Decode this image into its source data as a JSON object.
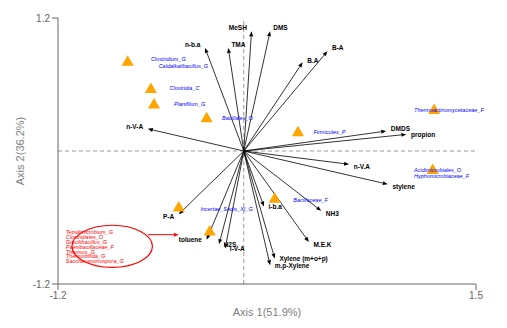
{
  "chart_data": {
    "type": "biplot",
    "xlabel": "Axis 1(51.9%)",
    "ylabel": "Axis 2(36.2%)",
    "xlim": [
      -1.2,
      1.5
    ],
    "ylim": [
      -1.2,
      1.2
    ],
    "xticks": [
      -1.2,
      1.5
    ],
    "yticks": [
      -1.2,
      1.2
    ],
    "grid": false,
    "legend": false,
    "reference_lines": {
      "x": [
        0
      ],
      "y": [
        0
      ],
      "color": "gray",
      "line_style": "dashed"
    },
    "env_vectors": {
      "color": "black",
      "items": [
        {
          "name": "MeSH",
          "x": 0.05,
          "y": 1.08,
          "label_x": 0.02,
          "label_y": 1.11
        },
        {
          "name": "DMS",
          "x": 0.17,
          "y": 1.08,
          "label_x": 0.19,
          "label_y": 1.11
        },
        {
          "name": "B-A",
          "x": 0.54,
          "y": 0.9,
          "label_x": 0.57,
          "label_y": 0.93
        },
        {
          "name": "B.A",
          "x": 0.38,
          "y": 0.8,
          "label_x": 0.41,
          "label_y": 0.82
        },
        {
          "name": "n-b.a",
          "x": -0.25,
          "y": 0.93,
          "label_x": -0.28,
          "label_y": 0.96
        },
        {
          "name": "TMA",
          "x": -0.1,
          "y": 0.93,
          "label_x": -0.08,
          "label_y": 0.96
        },
        {
          "name": "n-V-A",
          "x": -0.62,
          "y": 0.2,
          "label_x": -0.65,
          "label_y": 0.22
        },
        {
          "name": "DMDS",
          "x": 0.92,
          "y": 0.18,
          "label_x": 0.95,
          "label_y": 0.2
        },
        {
          "name": "propion",
          "x": 1.05,
          "y": 0.15,
          "label_x": 1.08,
          "label_y": 0.15
        },
        {
          "name": "n-V.A",
          "x": 0.68,
          "y": -0.12,
          "label_x": 0.71,
          "label_y": -0.14
        },
        {
          "name": "stylene",
          "x": 0.93,
          "y": -0.3,
          "label_x": 0.96,
          "label_y": -0.32
        },
        {
          "name": "i-b.a",
          "x": 0.13,
          "y": -0.5,
          "label_x": 0.16,
          "label_y": -0.5
        },
        {
          "name": "NH3",
          "x": 0.5,
          "y": -0.54,
          "label_x": 0.53,
          "label_y": -0.56
        },
        {
          "name": "P-A",
          "x": -0.42,
          "y": -0.57,
          "label_x": -0.45,
          "label_y": -0.59
        },
        {
          "name": "M.E.K",
          "x": 0.42,
          "y": -0.82,
          "label_x": 0.45,
          "label_y": -0.84
        },
        {
          "name": "toluene",
          "x": -0.24,
          "y": -0.8,
          "label_x": -0.27,
          "label_y": -0.8
        },
        {
          "name": "H2S",
          "x": -0.16,
          "y": -0.84,
          "label_x": -0.13,
          "label_y": -0.84
        },
        {
          "name": "i-V-A",
          "x": -0.12,
          "y": -0.88,
          "label_x": -0.09,
          "label_y": -0.88
        },
        {
          "name": "Xylene (m+o+p)",
          "x": 0.2,
          "y": -0.97,
          "label_x": 0.23,
          "label_y": -0.97
        },
        {
          "name": "m.p-Xylene",
          "x": 0.17,
          "y": -1.03,
          "label_x": 0.2,
          "label_y": -1.03
        }
      ]
    },
    "species": [
      {
        "name": "Clostridium_G",
        "x": -0.6,
        "y": 0.83,
        "color": "blue"
      },
      {
        "name": "Caldalkalibacillus_G",
        "x": -0.55,
        "y": 0.77,
        "color": "blue"
      },
      {
        "name": "Clostridia_C",
        "x": -0.48,
        "y": 0.57,
        "color": "blue"
      },
      {
        "name": "Planifilum_G",
        "x": -0.45,
        "y": 0.42,
        "color": "blue"
      },
      {
        "name": "Bacillales_O",
        "x": -0.14,
        "y": 0.3,
        "color": "blue"
      },
      {
        "name": "Firmicutes_P",
        "x": 0.45,
        "y": 0.17,
        "color": "blue"
      },
      {
        "name": "Thermoactinomycetaceae_F",
        "x": 1.1,
        "y": 0.37,
        "color": "blue"
      },
      {
        "name": "Acidimicrobiales_O",
        "x": 1.1,
        "y": -0.17,
        "color": "blue"
      },
      {
        "name": "Hyphomicrobiaceae_F",
        "x": 1.1,
        "y": -0.23,
        "color": "blue"
      },
      {
        "name": "Bacillaceae_F",
        "x": 0.32,
        "y": -0.44,
        "color": "blue"
      },
      {
        "name": "Incertae_Sedis_XI_G",
        "x": -0.28,
        "y": -0.52,
        "color": "blue"
      },
      {
        "name": "Tepidimicrobium_G",
        "x": -1.15,
        "y": -0.73,
        "color": "red"
      },
      {
        "name": "Clostridiales_O",
        "x": -1.15,
        "y": -0.78,
        "color": "red"
      },
      {
        "name": "Gracilibacillus_G",
        "x": -1.15,
        "y": -0.82,
        "color": "red"
      },
      {
        "name": "Paenibacillaceae_F",
        "x": -1.15,
        "y": -0.87,
        "color": "red"
      },
      {
        "name": "Thermus_G",
        "x": -1.15,
        "y": -0.91,
        "color": "red"
      },
      {
        "name": "Thermobifida_G",
        "x": -1.15,
        "y": -0.95,
        "color": "red"
      },
      {
        "name": "Saccharomonospora_G",
        "x": -1.15,
        "y": -0.99,
        "color": "red"
      }
    ],
    "samples": {
      "color": "#FFA500",
      "marker": "triangle",
      "points": [
        {
          "x": -0.75,
          "y": 0.8
        },
        {
          "x": -0.6,
          "y": 0.555
        },
        {
          "x": -0.58,
          "y": 0.415
        },
        {
          "x": -0.24,
          "y": 0.29
        },
        {
          "x": 0.35,
          "y": 0.165
        },
        {
          "x": 1.23,
          "y": 0.365
        },
        {
          "x": 1.22,
          "y": -0.175
        },
        {
          "x": 0.2,
          "y": -0.435
        },
        {
          "x": -0.42,
          "y": -0.515
        },
        {
          "x": -0.22,
          "y": -0.73
        }
      ]
    },
    "ellipse": {
      "center": [
        -0.85,
        -0.86
      ],
      "width": 0.52,
      "height": 0.38,
      "color": "red"
    },
    "arrow": {
      "x1": -0.62,
      "y1": -0.755,
      "x2": -0.42,
      "y2": -0.755,
      "color": "red"
    }
  }
}
